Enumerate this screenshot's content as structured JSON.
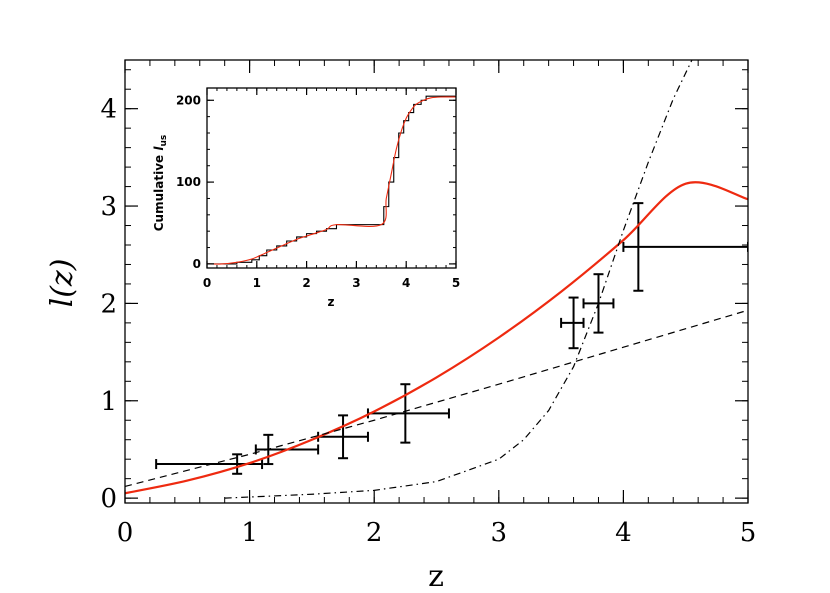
{
  "chart_data": [
    {
      "type": "line",
      "xlabel": "z",
      "ylabel": "l(z)",
      "xlim": [
        0,
        5
      ],
      "ylim": [
        -0.05,
        4.5
      ],
      "xticks": [
        "0",
        "1",
        "2",
        "3",
        "4",
        "5"
      ],
      "yticks": [
        "0",
        "1",
        "2",
        "3",
        "4"
      ],
      "series": [
        {
          "style": "points-with-error-bars",
          "color": "#000000",
          "points": [
            {
              "x": 0.9,
              "y": 0.35,
              "xerr_low": 0.65,
              "xerr_high": 0.2,
              "yerr": 0.1
            },
            {
              "x": 1.15,
              "y": 0.5,
              "xerr_low": 0.1,
              "xerr_high": 0.4,
              "yerr": 0.15
            },
            {
              "x": 1.75,
              "y": 0.63,
              "xerr_low": 0.2,
              "xerr_high": 0.2,
              "yerr": 0.22
            },
            {
              "x": 2.25,
              "y": 0.87,
              "xerr_low": 0.3,
              "xerr_high": 0.35,
              "yerr": 0.3
            },
            {
              "x": 3.6,
              "y": 1.8,
              "xerr_low": 0.1,
              "xerr_high": 0.08,
              "yerr": 0.26
            },
            {
              "x": 3.8,
              "y": 2.0,
              "xerr_low": 0.12,
              "xerr_high": 0.12,
              "yerr": 0.3
            },
            {
              "x": 4.12,
              "y": 2.58,
              "xerr_low": 0.12,
              "xerr_high": 0.88,
              "yerr": 0.45
            }
          ]
        },
        {
          "style": "solid",
          "color": "#ee2a10",
          "x": [
            0,
            0.5,
            1,
            1.5,
            2,
            2.5,
            3,
            3.5,
            4,
            4.5,
            5
          ],
          "y": [
            0.05,
            0.18,
            0.36,
            0.6,
            0.89,
            1.24,
            1.65,
            2.12,
            2.65,
            3.23,
            3.07
          ]
        },
        {
          "style": "dashed",
          "color": "#000000",
          "x": [
            0,
            1,
            2,
            3,
            4,
            5
          ],
          "y": [
            0.12,
            0.45,
            0.8,
            1.17,
            1.55,
            1.93
          ]
        },
        {
          "style": "dash-dot",
          "color": "#000000",
          "x": [
            0.8,
            1.5,
            2,
            2.5,
            3,
            3.2,
            3.4,
            3.6,
            3.8,
            4.0,
            4.2,
            4.4,
            4.55
          ],
          "y": [
            0.0,
            0.04,
            0.08,
            0.17,
            0.4,
            0.6,
            0.9,
            1.35,
            2.0,
            2.75,
            3.45,
            4.1,
            4.5
          ]
        }
      ]
    },
    {
      "type": "line",
      "xlabel": "z",
      "ylabel": "Cumulative ",
      "ylabel_sub": "l",
      "ylabel_subscript": "us",
      "xlim": [
        0,
        5
      ],
      "ylim": [
        -5,
        215
      ],
      "xticks": [
        "0",
        "1",
        "2",
        "3",
        "4",
        "5"
      ],
      "yticks": [
        "0",
        "100",
        "200"
      ],
      "series": [
        {
          "style": "step",
          "color": "#000000",
          "x": [
            0,
            0.3,
            0.6,
            0.9,
            1.05,
            1.2,
            1.4,
            1.6,
            1.8,
            2.0,
            2.2,
            2.4,
            2.6,
            3.5,
            3.55,
            3.65,
            3.75,
            3.85,
            3.95,
            4.05,
            4.15,
            4.3,
            4.4,
            4.5,
            5.0
          ],
          "y": [
            0,
            0,
            2,
            5,
            10,
            17,
            22,
            28,
            33,
            37,
            40,
            43,
            48,
            48,
            70,
            100,
            130,
            160,
            175,
            185,
            195,
            200,
            205,
            205,
            205
          ]
        },
        {
          "style": "solid",
          "color": "#ee2a10",
          "x": [
            0,
            0.3,
            0.6,
            0.9,
            1.2,
            1.5,
            1.8,
            2.1,
            2.4,
            2.6,
            3.5,
            3.6,
            3.7,
            3.8,
            3.9,
            4.0,
            4.1,
            4.2,
            4.35,
            4.5,
            4.7,
            5.0
          ],
          "y": [
            0,
            0,
            2,
            6,
            14,
            22,
            30,
            36,
            42,
            48,
            48,
            80,
            110,
            140,
            162,
            178,
            188,
            195,
            200,
            203,
            204,
            204
          ]
        }
      ]
    }
  ]
}
